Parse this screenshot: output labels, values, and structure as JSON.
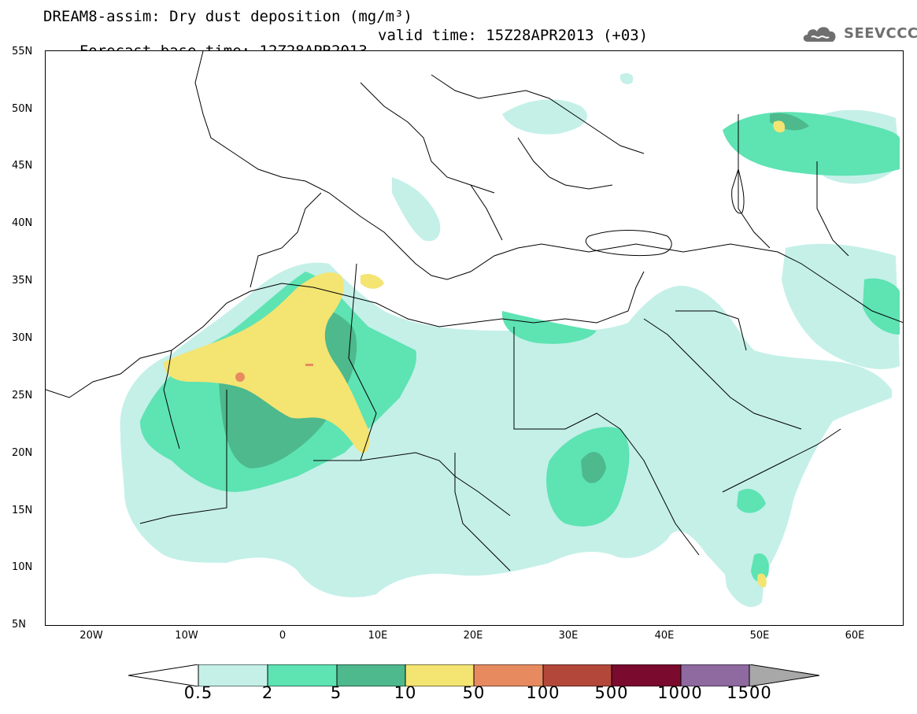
{
  "title": {
    "line1": "DREAM8-assim: Dry dust deposition (mg/m³)",
    "line2_base": "Forecast base time: 12Z28APR2013",
    "line2_valid": "valid time: 15Z28APR2013 (+03)"
  },
  "logo": {
    "text": "SEEVCCC",
    "icon": "cloud-icon"
  },
  "map": {
    "projection": "latitude-longitude",
    "extent": {
      "lon_min": -25,
      "lon_max": 65,
      "lat_min": 5,
      "lat_max": 55
    },
    "lat_labels": [
      "55N",
      "50N",
      "45N",
      "40N",
      "35N",
      "30N",
      "25N",
      "20N",
      "15N",
      "10N",
      "5N"
    ],
    "lon_labels": [
      "20W",
      "10W",
      "0",
      "10E",
      "20E",
      "30E",
      "40E",
      "50E",
      "60E"
    ]
  },
  "legend": {
    "thresholds": [
      "0.5",
      "2",
      "5",
      "10",
      "50",
      "100",
      "500",
      "1000",
      "1500"
    ],
    "colors": [
      "#c4f0e8",
      "#5ee3b3",
      "#4db98c",
      "#f4e472",
      "#e88a60",
      "#b3483a",
      "#7a0a2e",
      "#8e6aa0",
      "#a8a8a8"
    ]
  }
}
